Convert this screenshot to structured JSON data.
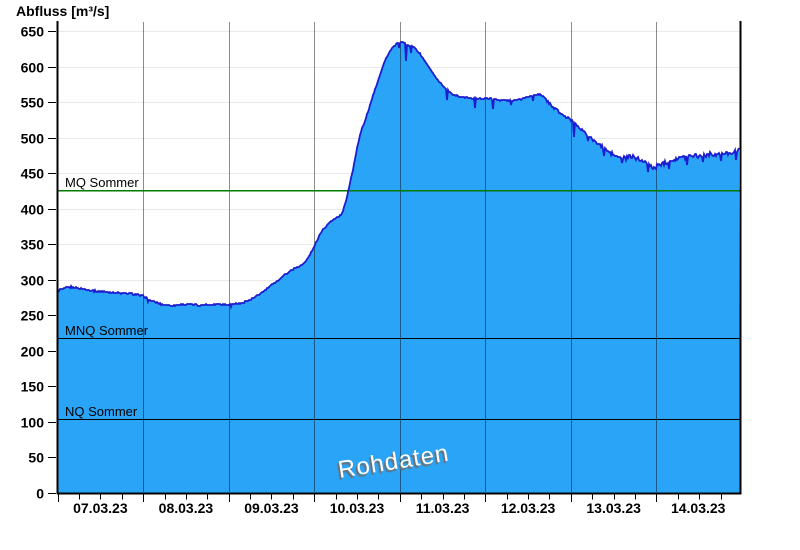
{
  "chart_data": {
    "type": "area",
    "title": "Abfluss [m³/s]",
    "watermark": "Rohdaten",
    "y_axis": {
      "min": 0,
      "max": 650,
      "step": 50,
      "top_value": 663,
      "unit": "m³/s"
    },
    "x_axis": {
      "labels": [
        "07.03.23",
        "08.03.23",
        "09.03.23",
        "10.03.23",
        "11.03.23",
        "12.03.23",
        "13.03.23",
        "14.03.23"
      ],
      "end_day": 7.977,
      "minor_ticks_per_day": 4
    },
    "reference_lines": [
      {
        "label": "MQ Sommer",
        "value": 427,
        "color": "#007a00",
        "width": 1.5
      },
      {
        "label": "MNQ Sommer",
        "value": 218,
        "color": "#000000",
        "width": 1.2
      },
      {
        "label": "NQ Sommer",
        "value": 104,
        "color": "#000000",
        "width": 1.2
      }
    ],
    "series": {
      "name": "Abfluss Rohdaten",
      "fill_color": "#2aa4f7",
      "stroke_color": "#1c1cd0",
      "points": [
        [
          0,
          285
        ],
        [
          0.07,
          288
        ],
        [
          0.15,
          290
        ],
        [
          0.22,
          289
        ],
        [
          0.3,
          287
        ],
        [
          0.45,
          284
        ],
        [
          0.6,
          283
        ],
        [
          0.75,
          281
        ],
        [
          0.9,
          280
        ],
        [
          1.0,
          277
        ],
        [
          1.07,
          272
        ],
        [
          1.15,
          268
        ],
        [
          1.25,
          265
        ],
        [
          1.35,
          264
        ],
        [
          1.45,
          265
        ],
        [
          1.55,
          266
        ],
        [
          1.65,
          264
        ],
        [
          1.75,
          265
        ],
        [
          1.85,
          266
        ],
        [
          1.95,
          265
        ],
        [
          2.05,
          266
        ],
        [
          2.15,
          267
        ],
        [
          2.25,
          272
        ],
        [
          2.35,
          279
        ],
        [
          2.45,
          288
        ],
        [
          2.55,
          297
        ],
        [
          2.65,
          306
        ],
        [
          2.73,
          314
        ],
        [
          2.8,
          318
        ],
        [
          2.87,
          322
        ],
        [
          2.93,
          331
        ],
        [
          3.0,
          346
        ],
        [
          3.06,
          362
        ],
        [
          3.12,
          374
        ],
        [
          3.19,
          383
        ],
        [
          3.26,
          387
        ],
        [
          3.32,
          392
        ],
        [
          3.37,
          410
        ],
        [
          3.42,
          436
        ],
        [
          3.46,
          458
        ],
        [
          3.51,
          489
        ],
        [
          3.57,
          517
        ],
        [
          3.63,
          539
        ],
        [
          3.69,
          562
        ],
        [
          3.75,
          582
        ],
        [
          3.81,
          603
        ],
        [
          3.87,
          619
        ],
        [
          3.93,
          629
        ],
        [
          3.98,
          633
        ],
        [
          4.03,
          634
        ],
        [
          4.1,
          631
        ],
        [
          4.18,
          626
        ],
        [
          4.25,
          616
        ],
        [
          4.32,
          603
        ],
        [
          4.4,
          589
        ],
        [
          4.47,
          577
        ],
        [
          4.54,
          568
        ],
        [
          4.62,
          561
        ],
        [
          4.7,
          558
        ],
        [
          4.8,
          556
        ],
        [
          4.9,
          555
        ],
        [
          5.0,
          556
        ],
        [
          5.1,
          554
        ],
        [
          5.2,
          553
        ],
        [
          5.32,
          552
        ],
        [
          5.45,
          556
        ],
        [
          5.55,
          559
        ],
        [
          5.62,
          562
        ],
        [
          5.68,
          558
        ],
        [
          5.75,
          549
        ],
        [
          5.82,
          540
        ],
        [
          5.9,
          532
        ],
        [
          6.0,
          525
        ],
        [
          6.08,
          517
        ],
        [
          6.16,
          508
        ],
        [
          6.25,
          498
        ],
        [
          6.35,
          488
        ],
        [
          6.45,
          479
        ],
        [
          6.55,
          473
        ],
        [
          6.63,
          471
        ],
        [
          6.7,
          474
        ],
        [
          6.77,
          473
        ],
        [
          6.85,
          466
        ],
        [
          6.92,
          461
        ],
        [
          6.97,
          457
        ],
        [
          7.03,
          462
        ],
        [
          7.12,
          466
        ],
        [
          7.22,
          470
        ],
        [
          7.32,
          473
        ],
        [
          7.42,
          476
        ],
        [
          7.52,
          474
        ],
        [
          7.62,
          477
        ],
        [
          7.72,
          476
        ],
        [
          7.82,
          478
        ],
        [
          7.9,
          480
        ],
        [
          7.977,
          483
        ]
      ],
      "noise_segments": [
        [
          0,
          2.2,
          1.1
        ],
        [
          2.2,
          3.95,
          0.8
        ],
        [
          3.95,
          5.7,
          1.0
        ],
        [
          5.7,
          6.3,
          1.7
        ],
        [
          6.3,
          7.98,
          3.0
        ]
      ],
      "down_spikes": [
        [
          1.06,
          5
        ],
        [
          2.03,
          4
        ],
        [
          3.99,
          7
        ],
        [
          4.07,
          24
        ],
        [
          4.13,
          9
        ],
        [
          4.55,
          15
        ],
        [
          4.88,
          14
        ],
        [
          5.09,
          13
        ],
        [
          5.3,
          6
        ],
        [
          5.55,
          8
        ],
        [
          6.04,
          19
        ],
        [
          6.2,
          8
        ],
        [
          6.38,
          10
        ],
        [
          6.6,
          9
        ],
        [
          6.75,
          8
        ],
        [
          6.9,
          8
        ],
        [
          7.15,
          9
        ],
        [
          7.35,
          10
        ],
        [
          7.55,
          8
        ],
        [
          7.75,
          9
        ],
        [
          7.93,
          11
        ]
      ]
    },
    "colors": {
      "h_gridline": "#e9e9e9",
      "v_gridline": "rgba(0,0,0,0.45)",
      "axis": "#000000",
      "tick_label": "#000000"
    }
  }
}
